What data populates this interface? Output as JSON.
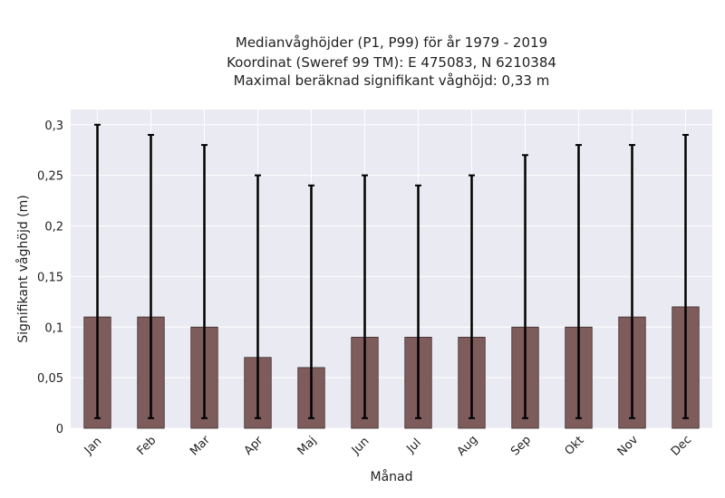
{
  "chart_data": {
    "type": "bar",
    "title_lines": [
      "Medianvåghöjder (P1, P99) för år 1979 - 2019",
      "Koordinat (Sweref 99 TM): E 475083, N 6210384",
      "Maximal beräknad signifikant våghöjd: 0,33 m"
    ],
    "xlabel": "Månad",
    "ylabel": "Signifikant våghöjd (m)",
    "categories": [
      "Jan",
      "Feb",
      "Mar",
      "Apr",
      "Maj",
      "Jun",
      "Jul",
      "Aug",
      "Sep",
      "Okt",
      "Nov",
      "Dec"
    ],
    "values": [
      0.11,
      0.11,
      0.1,
      0.07,
      0.06,
      0.09,
      0.09,
      0.09,
      0.1,
      0.1,
      0.11,
      0.12
    ],
    "error_low": [
      0.01,
      0.01,
      0.01,
      0.01,
      0.01,
      0.01,
      0.01,
      0.01,
      0.01,
      0.01,
      0.01,
      0.01
    ],
    "error_high": [
      0.3,
      0.29,
      0.28,
      0.25,
      0.24,
      0.25,
      0.24,
      0.25,
      0.27,
      0.28,
      0.28,
      0.29
    ],
    "ylim": [
      0,
      0.315
    ],
    "yticks": [
      0,
      0.05,
      0.1,
      0.15,
      0.2,
      0.25,
      0.3
    ],
    "ytick_labels": [
      "0",
      "0,05",
      "0,1",
      "0,15",
      "0,2",
      "0,25",
      "0,3"
    ],
    "grid": true,
    "colors": {
      "bar": "#7e5c5c",
      "bar_edge": "#3a2a2a",
      "error_bar": "#000000",
      "plot_background": "#eaeaf2",
      "grid": "#ffffff"
    }
  }
}
